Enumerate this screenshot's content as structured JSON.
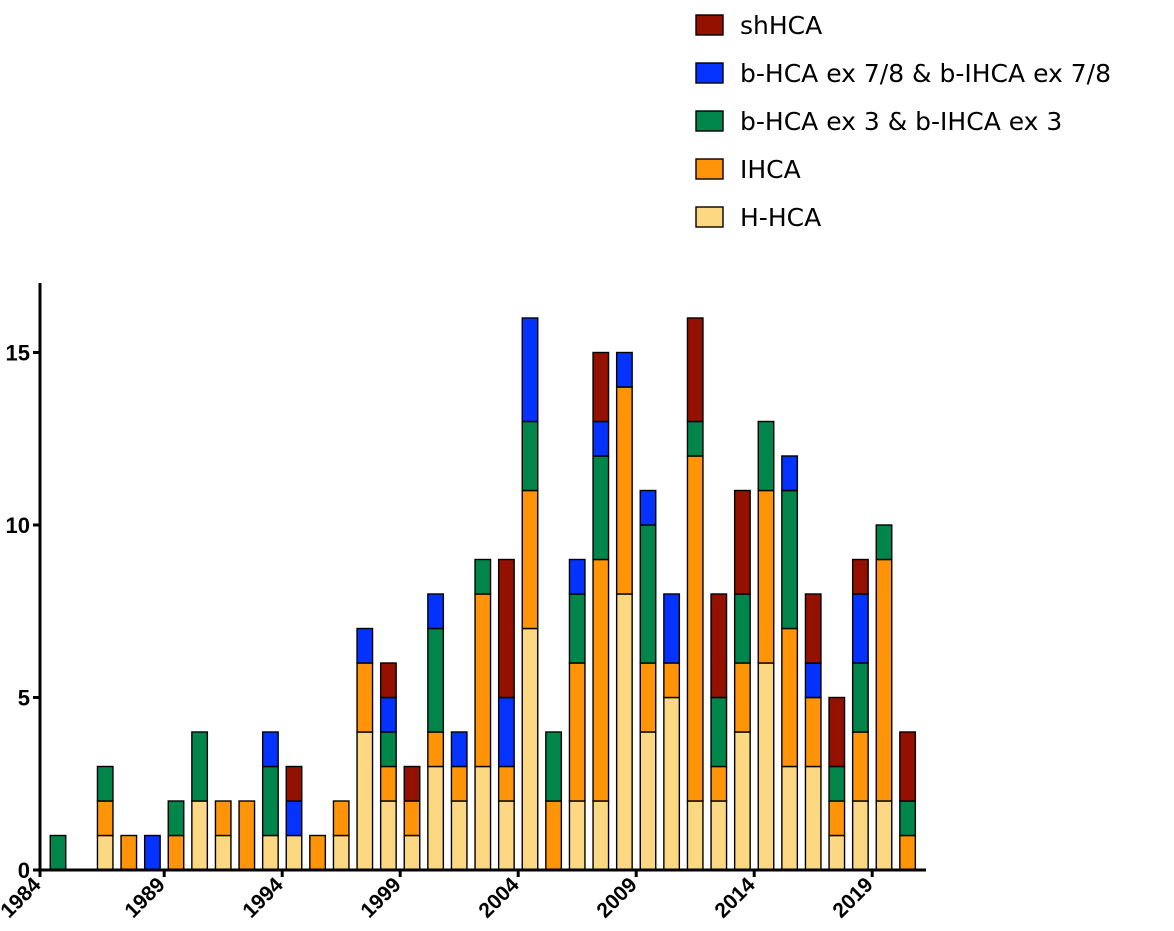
{
  "chart_data": {
    "type": "bar",
    "stacked": true,
    "title": "",
    "xlabel": "",
    "ylabel": "",
    "ylim": [
      0,
      17
    ],
    "y_ticks": [
      0,
      5,
      10,
      15
    ],
    "x_tick_labels": [
      "1984",
      "1989",
      "1994",
      "1999",
      "2004",
      "2009",
      "2014",
      "2019"
    ],
    "legend_position": "top-right",
    "grid": false,
    "x": [
      1984,
      1985,
      1986,
      1987,
      1988,
      1989,
      1990,
      1991,
      1992,
      1993,
      1994,
      1995,
      1996,
      1997,
      1998,
      1999,
      2000,
      2001,
      2002,
      2003,
      2004,
      2005,
      2006,
      2007,
      2008,
      2009,
      2010,
      2011,
      2012,
      2013,
      2014,
      2015,
      2016,
      2017,
      2018,
      2019,
      2020
    ],
    "series": [
      {
        "name": "H-HCA",
        "color": "#FDD882",
        "values": [
          0,
          0,
          1,
          0,
          0,
          0,
          2,
          1,
          0,
          1,
          1,
          0,
          1,
          4,
          2,
          1,
          3,
          2,
          3,
          2,
          7,
          0,
          2,
          2,
          8,
          4,
          5,
          2,
          2,
          4,
          6,
          3,
          3,
          1,
          2,
          2,
          0
        ]
      },
      {
        "name": "IHCA",
        "color": "#FF9408",
        "values": [
          0,
          0,
          1,
          1,
          0,
          1,
          0,
          1,
          2,
          0,
          0,
          1,
          1,
          2,
          1,
          1,
          1,
          1,
          5,
          1,
          4,
          2,
          4,
          7,
          6,
          2,
          1,
          10,
          1,
          2,
          5,
          4,
          2,
          1,
          2,
          7,
          1
        ]
      },
      {
        "name": "b-HCA ex 3 & b-IHCA ex 3",
        "color": "#00864A",
        "values": [
          1,
          0,
          1,
          0,
          0,
          1,
          2,
          0,
          0,
          2,
          0,
          0,
          0,
          0,
          1,
          0,
          3,
          0,
          1,
          0,
          2,
          2,
          2,
          3,
          0,
          4,
          0,
          1,
          2,
          2,
          2,
          4,
          0,
          1,
          2,
          1,
          1
        ]
      },
      {
        "name": "b-HCA ex 7/8 & b-IHCA ex 7/8",
        "color": "#0433FF",
        "values": [
          0,
          0,
          0,
          0,
          1,
          0,
          0,
          0,
          0,
          1,
          1,
          0,
          0,
          1,
          1,
          0,
          1,
          1,
          0,
          2,
          3,
          0,
          1,
          1,
          1,
          1,
          2,
          0,
          0,
          0,
          0,
          1,
          1,
          0,
          2,
          0,
          0
        ]
      },
      {
        "name": "shHCA",
        "color": "#941100",
        "values": [
          0,
          0,
          0,
          0,
          0,
          0,
          0,
          0,
          0,
          0,
          1,
          0,
          0,
          0,
          1,
          1,
          0,
          0,
          0,
          4,
          0,
          0,
          0,
          2,
          0,
          0,
          0,
          3,
          3,
          3,
          0,
          0,
          2,
          2,
          1,
          0,
          2
        ]
      }
    ],
    "legend_order": [
      "shHCA",
      "b-HCA ex 7/8 & b-IHCA ex 7/8",
      "b-HCA ex 3 & b-IHCA ex 3",
      "IHCA",
      "H-HCA"
    ]
  }
}
